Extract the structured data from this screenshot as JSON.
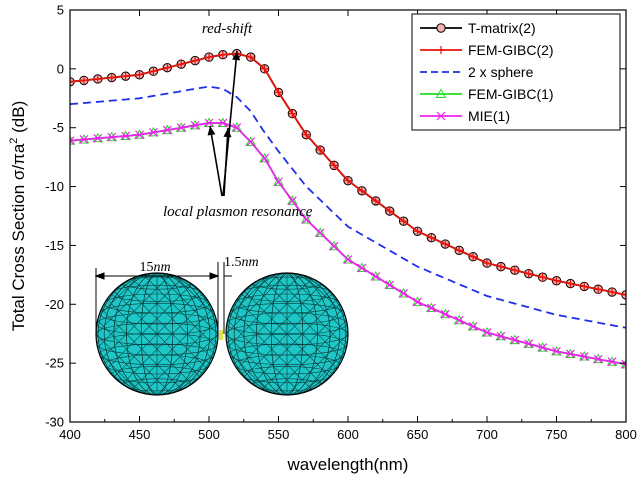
{
  "chart_data": {
    "type": "line",
    "xlabel": "wavelength(nm)",
    "ylabel_parts": {
      "main": "Total Cross Section σ/πa",
      "sup": "2",
      "unit": " (dB)"
    },
    "xlim": [
      400,
      800
    ],
    "ylim": [
      -30,
      5
    ],
    "xticks": [
      400,
      450,
      500,
      550,
      600,
      650,
      700,
      750,
      800
    ],
    "yticks": [
      -30,
      -25,
      -20,
      -15,
      -10,
      -5,
      0,
      5
    ],
    "grid": false,
    "legend": {
      "placement": "top-right"
    },
    "series": [
      {
        "name": "T-matrix(2)",
        "color": "#000000",
        "line": "solid",
        "marker": "circle",
        "x": [
          400,
          450,
          480,
          500,
          510,
          520,
          530,
          540,
          550,
          570,
          600,
          650,
          700,
          750,
          800
        ],
        "y": [
          -1.1,
          -0.5,
          0.4,
          1.0,
          1.2,
          1.3,
          1.0,
          0.0,
          -2.0,
          -5.6,
          -9.5,
          -13.8,
          -16.5,
          -18.0,
          -19.2
        ]
      },
      {
        "name": "FEM-GIBC(2)",
        "color": "#e8140c",
        "line": "solid",
        "marker": "plus",
        "x": [
          400,
          450,
          480,
          500,
          510,
          520,
          530,
          540,
          550,
          570,
          600,
          650,
          700,
          750,
          800
        ],
        "y": [
          -1.1,
          -0.5,
          0.4,
          1.0,
          1.2,
          1.3,
          1.0,
          0.0,
          -2.0,
          -5.6,
          -9.5,
          -13.8,
          -16.5,
          -18.0,
          -19.2
        ]
      },
      {
        "name": "2 x sphere",
        "color": "#1f2ee8",
        "line": "dashed",
        "marker": "none",
        "x": [
          400,
          450,
          480,
          500,
          510,
          520,
          530,
          540,
          550,
          570,
          600,
          650,
          700,
          750,
          800
        ],
        "y": [
          -3.0,
          -2.5,
          -1.9,
          -1.5,
          -1.7,
          -2.4,
          -3.6,
          -5.4,
          -7.0,
          -10.0,
          -13.4,
          -16.8,
          -19.3,
          -20.9,
          -22.0
        ]
      },
      {
        "name": "FEM-GIBC(1)",
        "color": "#22dd22",
        "line": "solid",
        "marker": "triangle",
        "x": [
          400,
          450,
          480,
          500,
          510,
          520,
          530,
          540,
          550,
          570,
          600,
          650,
          700,
          750,
          800
        ],
        "y": [
          -6.1,
          -5.6,
          -5.0,
          -4.6,
          -4.6,
          -5.0,
          -6.2,
          -7.6,
          -9.6,
          -12.8,
          -16.2,
          -19.8,
          -22.4,
          -24.0,
          -25.1
        ]
      },
      {
        "name": "MIE(1)",
        "color": "#ee22ee",
        "line": "solid",
        "marker": "x",
        "x": [
          400,
          450,
          480,
          500,
          510,
          520,
          530,
          540,
          550,
          570,
          600,
          650,
          700,
          750,
          800
        ],
        "y": [
          -6.1,
          -5.6,
          -5.0,
          -4.6,
          -4.6,
          -5.0,
          -6.2,
          -7.6,
          -9.6,
          -12.8,
          -16.2,
          -19.8,
          -22.4,
          -24.0,
          -25.1
        ]
      }
    ],
    "annotations": {
      "red_shift": "red-shift",
      "plasmon": "local plasmon resonance",
      "diameter_num": "15",
      "diameter_unit": "nm",
      "gap_num": "1.5",
      "gap_unit": "nm"
    },
    "sphere_color": "#1ec7c7"
  }
}
